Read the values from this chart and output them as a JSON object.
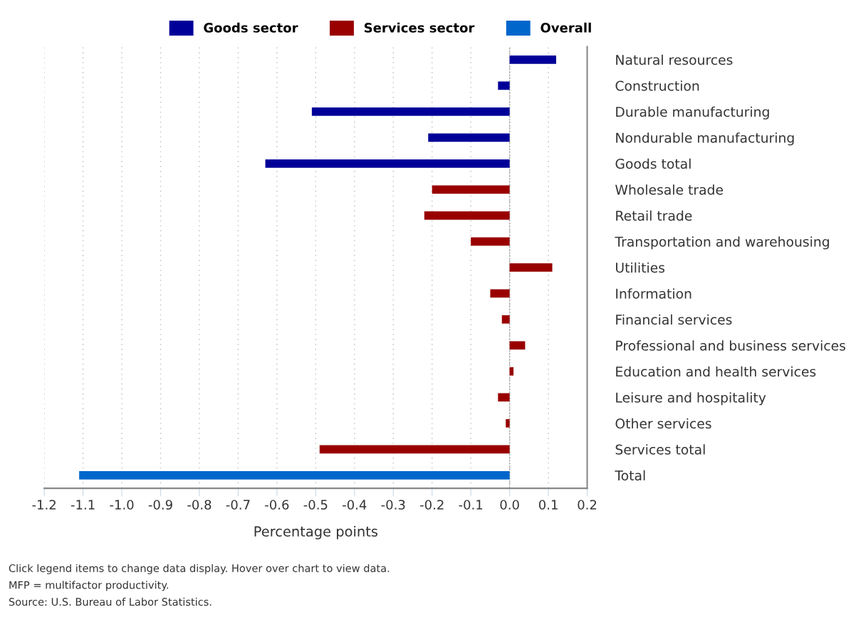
{
  "chart_data": {
    "type": "bar",
    "orientation": "horizontal",
    "xlabel": "Percentage points",
    "categories": [
      "Natural resources",
      "Construction",
      "Durable manufacturing",
      "Nondurable manufacturing",
      "Goods total",
      "Wholesale trade",
      "Retail trade",
      "Transportation and warehousing",
      "Utilities",
      "Information",
      "Financial services",
      "Professional and business services",
      "Education and health services",
      "Leisure and hospitality",
      "Other services",
      "Services total",
      "Total"
    ],
    "series": [
      {
        "name": "Goods sector",
        "color": "#000099",
        "values": [
          0.12,
          -0.03,
          -0.51,
          -0.21,
          -0.63,
          null,
          null,
          null,
          null,
          null,
          null,
          null,
          null,
          null,
          null,
          null,
          null
        ]
      },
      {
        "name": "Services sector",
        "color": "#990000",
        "values": [
          null,
          null,
          null,
          null,
          null,
          -0.2,
          -0.22,
          -0.1,
          0.11,
          -0.05,
          -0.02,
          0.04,
          0.01,
          -0.03,
          -0.01,
          -0.49,
          null
        ]
      },
      {
        "name": "Overall",
        "color": "#0066cc",
        "values": [
          null,
          null,
          null,
          null,
          null,
          null,
          null,
          null,
          null,
          null,
          null,
          null,
          null,
          null,
          null,
          null,
          -1.11
        ]
      }
    ],
    "xlim": [
      -1.2,
      0.2
    ],
    "xticks": [
      {
        "value": -1.2,
        "label": "-1.2"
      },
      {
        "value": -1.1,
        "label": "-1.1"
      },
      {
        "value": -1.0,
        "label": "-1.0"
      },
      {
        "value": -0.9,
        "label": "-0.9"
      },
      {
        "value": -0.8,
        "label": "-0.8"
      },
      {
        "value": -0.7,
        "label": "-0.7"
      },
      {
        "value": -0.6,
        "label": "-0.6"
      },
      {
        "value": -0.5,
        "label": "-0.5"
      },
      {
        "value": -0.4,
        "label": "-0.4"
      },
      {
        "value": -0.3,
        "label": "-0.3"
      },
      {
        "value": -0.2,
        "label": "-0.2"
      },
      {
        "value": -0.1,
        "label": "-0.1"
      },
      {
        "value": 0.0,
        "label": "0.0"
      },
      {
        "value": 0.1,
        "label": "0.1"
      },
      {
        "value": 0.2,
        "label": "0.2"
      }
    ],
    "grid": "x",
    "legend": "top",
    "ref_lines": [
      {
        "axis": "x",
        "value": 0,
        "color": "#aaaaaa",
        "line_style": "dashed"
      }
    ],
    "annotations": [
      "Click legend items to change data display. Hover over chart to view data.",
      "MFP = multifactor productivity.",
      "Source: U.S. Bureau of Labor Statistics."
    ]
  }
}
